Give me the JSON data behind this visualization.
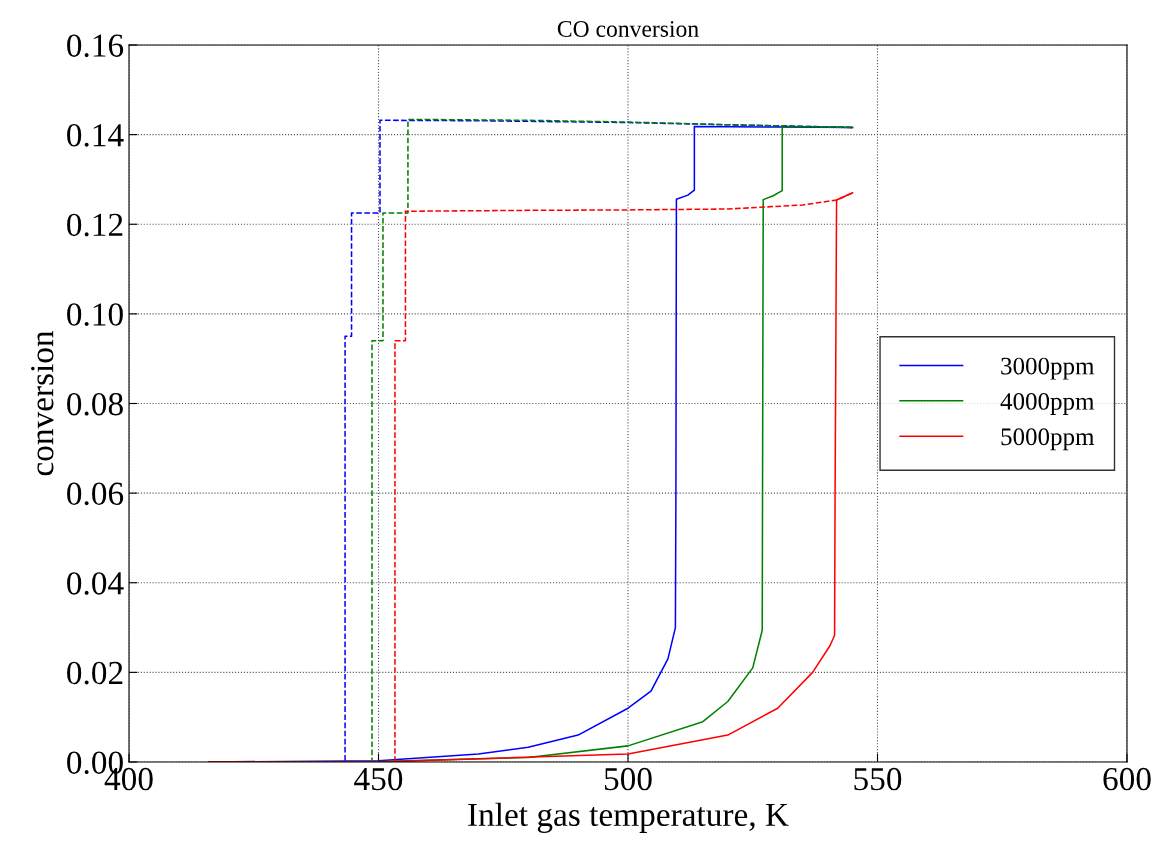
{
  "chart_data": {
    "type": "line",
    "title": "CO conversion",
    "xlabel": "Inlet gas temperature, K",
    "ylabel": "conversion",
    "xlim": [
      400,
      600
    ],
    "xticks": [
      400,
      450,
      500,
      550,
      600
    ],
    "ylim": [
      0,
      0.16
    ],
    "yticks": [
      {
        "value": 0,
        "label": "0.00"
      },
      {
        "value": 0.02,
        "label": "0.02"
      },
      {
        "value": 0.04,
        "label": "0.04"
      },
      {
        "value": 0.06,
        "label": "0.06"
      },
      {
        "value": 0.08,
        "label": "0.08"
      },
      {
        "value": 0.1,
        "label": "0.10"
      },
      {
        "value": 0.12,
        "label": "0.12"
      },
      {
        "value": 0.14,
        "label": "0.14"
      },
      {
        "value": 0.16,
        "label": "0.16"
      }
    ],
    "grid": true,
    "legend": "right",
    "line_style": "solid",
    "series": [
      {
        "name": "3000ppm",
        "color": "#0000ff",
        "x": [
          416,
          450,
          470,
          480,
          490,
          500,
          504.6,
          508,
          509.5,
          509.6,
          509.7,
          512,
          513.3,
          513.3,
          530,
          545
        ],
        "values": [
          0,
          0.0003,
          0.0018,
          0.0033,
          0.006,
          0.012,
          0.0158,
          0.023,
          0.03,
          0.06,
          0.1256,
          0.1265,
          0.1276,
          0.1418,
          0.1417,
          0.1416
        ]
      },
      {
        "name": "4000ppm",
        "color": "#008000",
        "x": [
          416,
          450,
          480,
          500,
          515,
          520,
          525,
          526.9,
          527,
          527.1,
          529,
          530.9,
          530.9,
          545
        ],
        "values": [
          0,
          0.0001,
          0.001,
          0.0036,
          0.009,
          0.0135,
          0.021,
          0.0294,
          0.08,
          0.1255,
          0.1263,
          0.1275,
          0.1418,
          0.1416
        ]
      },
      {
        "name": "5000ppm",
        "color": "#ff0000",
        "x": [
          416,
          450,
          500,
          520,
          530,
          537,
          540.5,
          541.4,
          541.5,
          541.8,
          545
        ],
        "values": [
          0,
          0,
          0.0018,
          0.006,
          0.012,
          0.02,
          0.026,
          0.0283,
          0.06,
          0.1254,
          0.127
        ]
      },
      {
        "color": "#0000ff",
        "line_style": "dashed",
        "x": [
          416,
          443.3,
          443.3,
          444.6,
          444.6,
          450.3,
          450.3,
          470,
          500,
          520,
          545
        ],
        "values": [
          0,
          0,
          0.095,
          0.095,
          0.1225,
          0.1225,
          0.1432,
          0.1431,
          0.1427,
          0.1422,
          0.1416
        ]
      },
      {
        "color": "#008000",
        "line_style": "dashed",
        "x": [
          416,
          448.7,
          448.7,
          450.9,
          450.9,
          455.9,
          455.9,
          480,
          500,
          520,
          545
        ],
        "values": [
          0,
          0,
          0.094,
          0.094,
          0.1225,
          0.1225,
          0.1434,
          0.1432,
          0.1428,
          0.1422,
          0.1416
        ]
      },
      {
        "color": "#ff0000",
        "line_style": "dashed",
        "x": [
          416,
          453.3,
          453.3,
          455.4,
          455.4,
          480,
          500,
          520,
          535,
          541.8,
          545
        ],
        "values": [
          0,
          0,
          0.094,
          0.094,
          0.1229,
          0.1231,
          0.1232,
          0.1234,
          0.1243,
          0.1254,
          0.127
        ]
      }
    ]
  }
}
